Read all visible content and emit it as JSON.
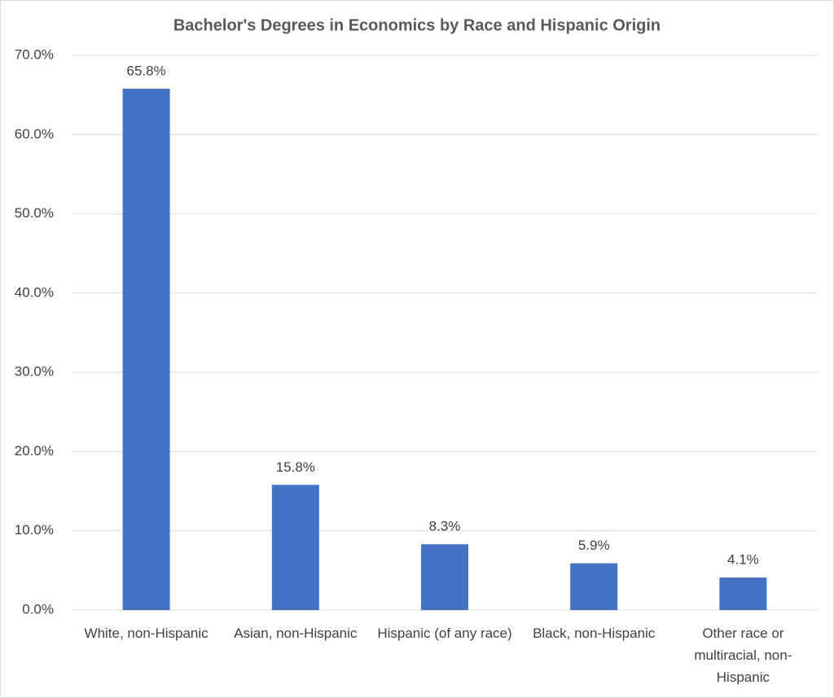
{
  "chart_data": {
    "type": "bar",
    "title": "Bachelor's Degrees in Economics by Race and Hispanic Origin",
    "categories": [
      "White, non-Hispanic",
      "Asian, non-Hispanic",
      "Hispanic (of any race)",
      "Black, non-Hispanic",
      "Other race or multiracial, non-Hispanic"
    ],
    "values": [
      65.8,
      15.8,
      8.3,
      5.9,
      4.1
    ],
    "value_labels": [
      "65.8%",
      "15.8%",
      "8.3%",
      "5.9%",
      "4.1%"
    ],
    "color": "#4472c4",
    "ylim": [
      0,
      70
    ],
    "yticks": [
      {
        "value": 0,
        "label": "0.0%"
      },
      {
        "value": 10,
        "label": "10.0%"
      },
      {
        "value": 20,
        "label": "20.0%"
      },
      {
        "value": 30,
        "label": "30.0%"
      },
      {
        "value": 40,
        "label": "40.0%"
      },
      {
        "value": 50,
        "label": "50.0%"
      },
      {
        "value": 60,
        "label": "60.0%"
      },
      {
        "value": 70,
        "label": "70.0%"
      }
    ],
    "grid": true
  }
}
